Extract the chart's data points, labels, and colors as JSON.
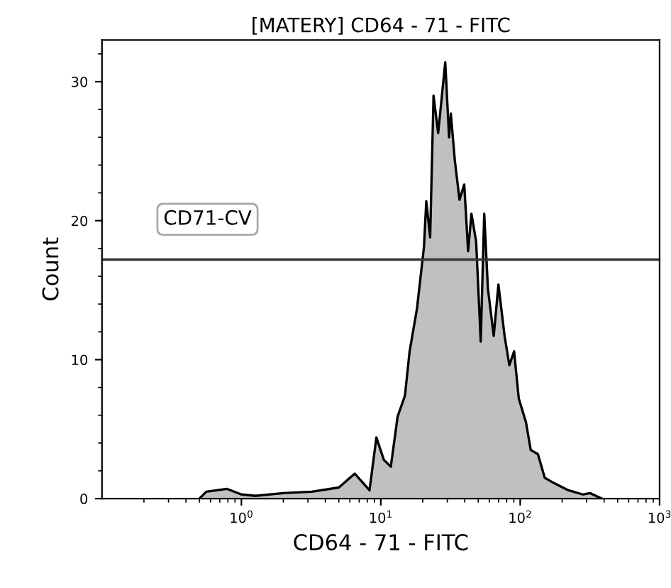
{
  "chart_data": {
    "type": "area",
    "title": "[MATERY] CD64 - 71 - FITC",
    "xlabel": "CD64 - 71 - FITC",
    "ylabel": "Count",
    "log": "x",
    "x": [
      0.5,
      0.56,
      0.79,
      1.0,
      1.26,
      2.0,
      3.2,
      5.0,
      6.5,
      8.3,
      9.3,
      10.5,
      11.8,
      13.2,
      14.9,
      16.1,
      18.2,
      20.4,
      21.2,
      22.6,
      23.9,
      25.8,
      29,
      30.9,
      31.8,
      34.0,
      36.7,
      39.7,
      42.3,
      44.7,
      48.3,
      52.1,
      55.2,
      58.7,
      64.6,
      69.8,
      77.3,
      83.6,
      90.4,
      97.7,
      110,
      119,
      134,
      150,
      176,
      222,
      281,
      316,
      385
    ],
    "series": [
      {
        "color": "#c0c0c0",
        "values": [
          0,
          0.5,
          0.7,
          0.3,
          0.2,
          0.4,
          0.5,
          0.8,
          1.8,
          0.6,
          4.4,
          2.8,
          2.3,
          5.9,
          7.4,
          10.6,
          13.7,
          18.1,
          21.4,
          18.8,
          29.0,
          26.3,
          31.4,
          26.0,
          27.7,
          24.3,
          21.5,
          22.6,
          17.8,
          20.5,
          18.5,
          11.3,
          20.5,
          15.1,
          11.7,
          15.4,
          11.7,
          9.6,
          10.6,
          7.2,
          5.5,
          3.5,
          3.2,
          1.5,
          1.1,
          0.6,
          0.3,
          0.4,
          0
        ]
      }
    ],
    "xlim": [
      0.1,
      1000
    ],
    "xticks": [
      {
        "value": 1,
        "label": "10$^{0}$"
      },
      {
        "value": 10,
        "label": "10$^{1}$"
      },
      {
        "value": 100,
        "label": "10$^{2}$"
      },
      {
        "value": 1000,
        "label": "10$^{3}$"
      }
    ],
    "ylim": [
      0,
      33
    ],
    "yticks": [
      0,
      10,
      20,
      30
    ],
    "grid": false,
    "ref_lines": [
      {
        "axis": "y",
        "value": 17.2,
        "label": "CD71-CV",
        "color": "#333333"
      }
    ]
  }
}
